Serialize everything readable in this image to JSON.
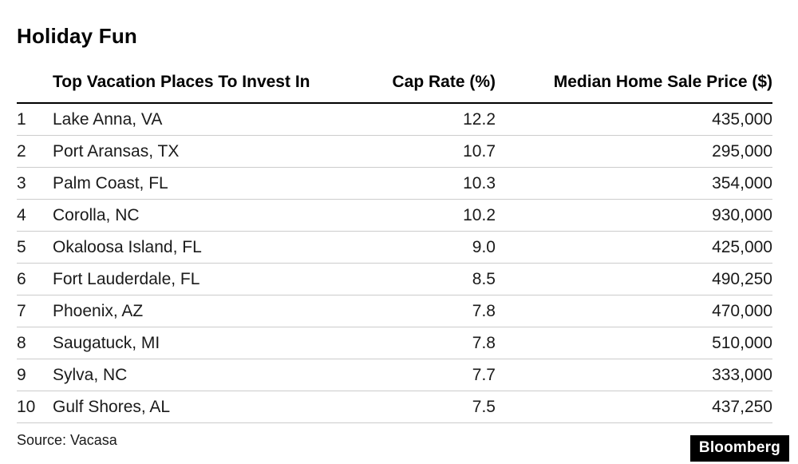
{
  "title": "Holiday Fun",
  "brand": "Bloomberg",
  "colors": {
    "background": "#ffffff",
    "text": "#000000",
    "header_rule": "#000000",
    "row_divider": "#cccccc",
    "logo_bg": "#000000",
    "logo_text": "#ffffff"
  },
  "chart_data": {
    "type": "table",
    "title": "Holiday Fun",
    "columns": [
      "Top Vacation Places To Invest In",
      "Cap Rate (%)",
      "Median Home Sale Price ($)"
    ],
    "rows": [
      {
        "rank": "1",
        "place": "Lake Anna, VA",
        "cap_rate": "12.2",
        "price": "435,000"
      },
      {
        "rank": "2",
        "place": "Port Aransas, TX",
        "cap_rate": "10.7",
        "price": "295,000"
      },
      {
        "rank": "3",
        "place": "Palm Coast, FL",
        "cap_rate": "10.3",
        "price": "354,000"
      },
      {
        "rank": "4",
        "place": "Corolla, NC",
        "cap_rate": "10.2",
        "price": "930,000"
      },
      {
        "rank": "5",
        "place": "Okaloosa Island, FL",
        "cap_rate": "9.0",
        "price": "425,000"
      },
      {
        "rank": "6",
        "place": "Fort Lauderdale, FL",
        "cap_rate": "8.5",
        "price": "490,250"
      },
      {
        "rank": "7",
        "place": "Phoenix, AZ",
        "cap_rate": "7.8",
        "price": "470,000"
      },
      {
        "rank": "8",
        "place": "Saugatuck, MI",
        "cap_rate": "7.8",
        "price": "510,000"
      },
      {
        "rank": "9",
        "place": "Sylva, NC",
        "cap_rate": "7.7",
        "price": "333,000"
      },
      {
        "rank": "10",
        "place": "Gulf Shores, AL",
        "cap_rate": "7.5",
        "price": "437,250"
      }
    ],
    "source": "Source: Vacasa",
    "grid": "horizontal-dividers",
    "legend": "none"
  }
}
